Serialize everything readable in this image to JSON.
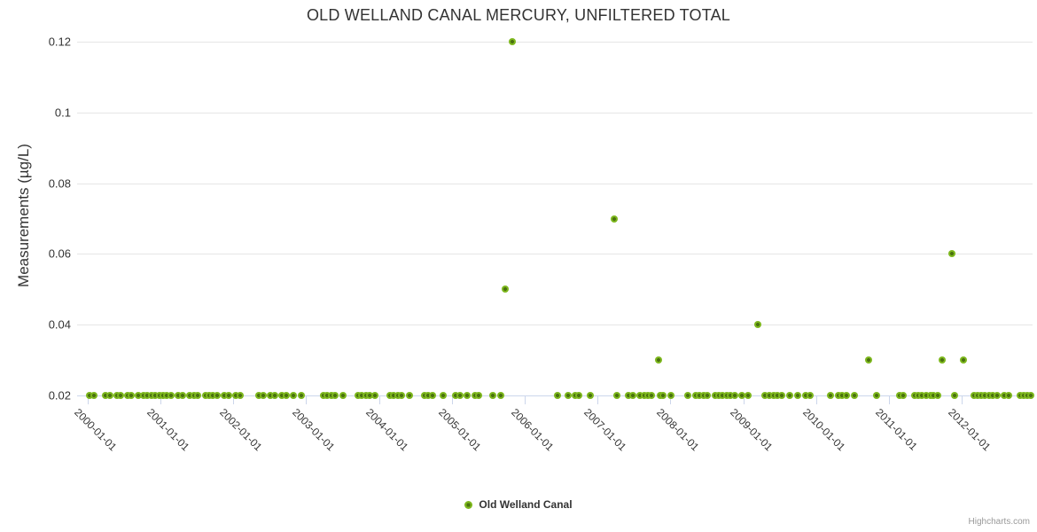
{
  "chart_data": {
    "type": "scatter",
    "title": "OLD WELLAND CANAL MERCURY, UNFILTERED TOTAL",
    "xlabel": "",
    "ylabel": "Measurements (µg/L)",
    "grid": "horizontal-only",
    "legend_position": "bottom-center",
    "credits": "Highcharts.com",
    "marker_color": "#7db71d",
    "marker_color_dark": "#4a720f",
    "axis_line_color": "#ccd6eb",
    "grid_color": "#e6e6e6",
    "xlim": [
      "1999-11-10",
      "2012-12-20"
    ],
    "ylim": [
      0.02,
      0.1218
    ],
    "y_ticks": [
      {
        "value": 0.02,
        "label": "0.02"
      },
      {
        "value": 0.04,
        "label": "0.04"
      },
      {
        "value": 0.06,
        "label": "0.06"
      },
      {
        "value": 0.08,
        "label": "0.08"
      },
      {
        "value": 0.1,
        "label": "0.1"
      },
      {
        "value": 0.12,
        "label": "0.12"
      }
    ],
    "x_ticks": [
      {
        "date": "2000-01-01",
        "label": "2000-01-01"
      },
      {
        "date": "2001-01-01",
        "label": "2001-01-01"
      },
      {
        "date": "2002-01-01",
        "label": "2002-01-01"
      },
      {
        "date": "2003-01-01",
        "label": "2003-01-01"
      },
      {
        "date": "2004-01-01",
        "label": "2004-01-01"
      },
      {
        "date": "2005-01-01",
        "label": "2005-01-01"
      },
      {
        "date": "2006-01-01",
        "label": "2006-01-01"
      },
      {
        "date": "2007-01-01",
        "label": "2007-01-01"
      },
      {
        "date": "2008-01-01",
        "label": "2008-01-01"
      },
      {
        "date": "2009-01-01",
        "label": "2009-01-01"
      },
      {
        "date": "2010-01-01",
        "label": "2010-01-01"
      },
      {
        "date": "2011-01-01",
        "label": "2011-01-01"
      },
      {
        "date": "2012-01-01",
        "label": "2012-01-01"
      }
    ],
    "series": [
      {
        "name": "Old Welland Canal",
        "points": [
          [
            "2000-01-10",
            0.02
          ],
          [
            "2000-02-01",
            0.02
          ],
          [
            "2000-04-02",
            0.02
          ],
          [
            "2000-04-23",
            0.02
          ],
          [
            "2000-05-27",
            0.02
          ],
          [
            "2000-06-15",
            0.02
          ],
          [
            "2000-07-19",
            0.02
          ],
          [
            "2000-08-08",
            0.02
          ],
          [
            "2000-09-12",
            0.02
          ],
          [
            "2000-10-07",
            0.02
          ],
          [
            "2000-10-26",
            0.02
          ],
          [
            "2000-11-17",
            0.02
          ],
          [
            "2000-12-06",
            0.02
          ],
          [
            "2000-12-26",
            0.02
          ],
          [
            "2001-01-14",
            0.02
          ],
          [
            "2001-02-02",
            0.02
          ],
          [
            "2001-02-22",
            0.02
          ],
          [
            "2001-04-01",
            0.02
          ],
          [
            "2001-04-21",
            0.02
          ],
          [
            "2001-05-29",
            0.02
          ],
          [
            "2001-06-17",
            0.02
          ],
          [
            "2001-07-06",
            0.02
          ],
          [
            "2001-08-14",
            0.02
          ],
          [
            "2001-09-02",
            0.02
          ],
          [
            "2001-09-21",
            0.02
          ],
          [
            "2001-10-11",
            0.02
          ],
          [
            "2001-11-18",
            0.02
          ],
          [
            "2001-12-07",
            0.02
          ],
          [
            "2002-01-14",
            0.02
          ],
          [
            "2002-02-03",
            0.02
          ],
          [
            "2002-05-10",
            0.02
          ],
          [
            "2002-05-29",
            0.02
          ],
          [
            "2002-07-06",
            0.02
          ],
          [
            "2002-07-26",
            0.02
          ],
          [
            "2002-09-02",
            0.02
          ],
          [
            "2002-09-22",
            0.02
          ],
          [
            "2002-10-30",
            0.02
          ],
          [
            "2002-12-08",
            0.02
          ],
          [
            "2003-03-29",
            0.02
          ],
          [
            "2003-04-17",
            0.02
          ],
          [
            "2003-05-07",
            0.02
          ],
          [
            "2003-05-26",
            0.02
          ],
          [
            "2003-07-04",
            0.02
          ],
          [
            "2003-09-18",
            0.02
          ],
          [
            "2003-10-07",
            0.02
          ],
          [
            "2003-10-27",
            0.02
          ],
          [
            "2003-11-15",
            0.02
          ],
          [
            "2003-12-12",
            0.02
          ],
          [
            "2004-02-25",
            0.02
          ],
          [
            "2004-03-16",
            0.02
          ],
          [
            "2004-04-04",
            0.02
          ],
          [
            "2004-04-24",
            0.02
          ],
          [
            "2004-06-01",
            0.02
          ],
          [
            "2004-08-17",
            0.02
          ],
          [
            "2004-09-05",
            0.02
          ],
          [
            "2004-09-25",
            0.02
          ],
          [
            "2004-11-17",
            0.02
          ],
          [
            "2005-01-21",
            0.02
          ],
          [
            "2005-02-09",
            0.02
          ],
          [
            "2005-03-17",
            0.02
          ],
          [
            "2005-04-25",
            0.02
          ],
          [
            "2005-05-15",
            0.02
          ],
          [
            "2005-07-27",
            0.02
          ],
          [
            "2005-09-01",
            0.02
          ],
          [
            "2005-09-23",
            0.05
          ],
          [
            "2005-10-31",
            0.12
          ],
          [
            "2006-06-14",
            0.02
          ],
          [
            "2006-08-08",
            0.02
          ],
          [
            "2006-09-11",
            0.02
          ],
          [
            "2006-10-01",
            0.02
          ],
          [
            "2006-11-27",
            0.02
          ],
          [
            "2007-03-24",
            0.07
          ],
          [
            "2007-04-10",
            0.02
          ],
          [
            "2007-06-06",
            0.02
          ],
          [
            "2007-06-25",
            0.02
          ],
          [
            "2007-08-03",
            0.02
          ],
          [
            "2007-08-22",
            0.02
          ],
          [
            "2007-09-10",
            0.02
          ],
          [
            "2007-09-30",
            0.02
          ],
          [
            "2007-11-04",
            0.03
          ],
          [
            "2007-11-12",
            0.02
          ],
          [
            "2007-11-26",
            0.02
          ],
          [
            "2008-01-03",
            0.02
          ],
          [
            "2008-03-30",
            0.02
          ],
          [
            "2008-05-07",
            0.02
          ],
          [
            "2008-05-27",
            0.02
          ],
          [
            "2008-06-15",
            0.02
          ],
          [
            "2008-07-04",
            0.02
          ],
          [
            "2008-08-12",
            0.02
          ],
          [
            "2008-08-31",
            0.02
          ],
          [
            "2008-09-20",
            0.02
          ],
          [
            "2008-10-09",
            0.02
          ],
          [
            "2008-10-28",
            0.02
          ],
          [
            "2008-11-17",
            0.02
          ],
          [
            "2008-12-25",
            0.02
          ],
          [
            "2009-01-24",
            0.02
          ],
          [
            "2009-03-14",
            0.04
          ],
          [
            "2009-04-20",
            0.02
          ],
          [
            "2009-05-11",
            0.02
          ],
          [
            "2009-06-01",
            0.02
          ],
          [
            "2009-06-21",
            0.02
          ],
          [
            "2009-07-12",
            0.02
          ],
          [
            "2009-08-21",
            0.02
          ],
          [
            "2009-09-30",
            0.02
          ],
          [
            "2009-11-09",
            0.02
          ],
          [
            "2009-11-30",
            0.02
          ],
          [
            "2010-03-12",
            0.02
          ],
          [
            "2010-04-21",
            0.02
          ],
          [
            "2010-05-11",
            0.02
          ],
          [
            "2010-05-31",
            0.02
          ],
          [
            "2010-07-10",
            0.02
          ],
          [
            "2010-09-22",
            0.03
          ],
          [
            "2010-11-01",
            0.02
          ],
          [
            "2011-02-23",
            0.02
          ],
          [
            "2011-03-14",
            0.02
          ],
          [
            "2011-05-09",
            0.02
          ],
          [
            "2011-05-28",
            0.02
          ],
          [
            "2011-06-16",
            0.02
          ],
          [
            "2011-07-06",
            0.02
          ],
          [
            "2011-07-29",
            0.02
          ],
          [
            "2011-08-13",
            0.02
          ],
          [
            "2011-09-01",
            0.02
          ],
          [
            "2011-09-24",
            0.03
          ],
          [
            "2011-11-14",
            0.06
          ],
          [
            "2011-11-25",
            0.02
          ],
          [
            "2012-01-08",
            0.03
          ],
          [
            "2012-03-02",
            0.02
          ],
          [
            "2012-03-20",
            0.02
          ],
          [
            "2012-04-06",
            0.02
          ],
          [
            "2012-04-26",
            0.02
          ],
          [
            "2012-05-16",
            0.02
          ],
          [
            "2012-06-05",
            0.02
          ],
          [
            "2012-06-25",
            0.02
          ],
          [
            "2012-07-31",
            0.02
          ],
          [
            "2012-08-22",
            0.02
          ],
          [
            "2012-10-19",
            0.02
          ],
          [
            "2012-11-06",
            0.02
          ],
          [
            "2012-11-26",
            0.02
          ],
          [
            "2012-12-10",
            0.02
          ]
        ]
      }
    ]
  },
  "legend": {
    "label": "Old Welland Canal"
  }
}
